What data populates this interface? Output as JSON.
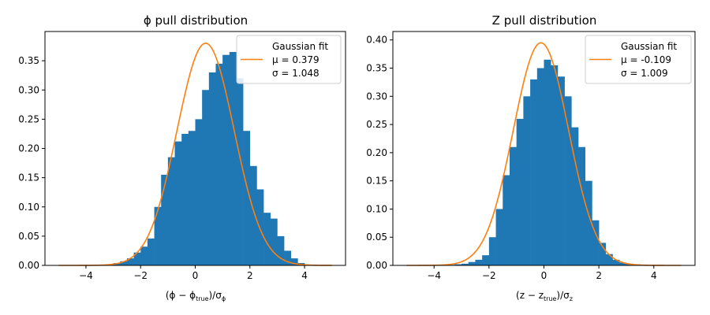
{
  "colors": {
    "bar": "#1f77b4",
    "fit": "#ff7f0e",
    "axis": "#000000"
  },
  "chart_data": [
    {
      "type": "bar",
      "title": "ϕ pull distribution",
      "xlabel_main": "(ϕ − ϕ",
      "xlabel_sub1": "true",
      "xlabel_mid": ")/σ",
      "xlabel_sub2": "ϕ",
      "xlim": [
        -5.5,
        5.5
      ],
      "ylim": [
        0,
        0.4
      ],
      "xticks": [
        -4,
        -2,
        0,
        2,
        4
      ],
      "xtick_labels": [
        "−4",
        "−2",
        "0",
        "2",
        "4"
      ],
      "yticks": [
        0,
        0.05,
        0.1,
        0.15,
        0.2,
        0.25,
        0.3,
        0.35
      ],
      "ytick_labels": [
        "0.00",
        "0.05",
        "0.10",
        "0.15",
        "0.20",
        "0.25",
        "0.30",
        "0.35"
      ],
      "bin_width": 0.25,
      "bins_start": [
        -4.0,
        -3.75,
        -3.5,
        -3.25,
        -3.0,
        -2.75,
        -2.5,
        -2.25,
        -2.0,
        -1.75,
        -1.5,
        -1.25,
        -1.0,
        -0.75,
        -0.5,
        -0.25,
        0.0,
        0.25,
        0.5,
        0.75,
        1.0,
        1.25,
        1.5,
        1.75,
        2.0,
        2.25,
        2.5,
        2.75,
        3.0,
        3.25,
        3.5,
        3.75
      ],
      "values": [
        0.0002,
        0.0004,
        0.001,
        0.002,
        0.004,
        0.007,
        0.012,
        0.022,
        0.032,
        0.046,
        0.1,
        0.155,
        0.185,
        0.212,
        0.225,
        0.23,
        0.25,
        0.3,
        0.33,
        0.345,
        0.36,
        0.365,
        0.32,
        0.23,
        0.17,
        0.13,
        0.09,
        0.08,
        0.05,
        0.025,
        0.012,
        0.004
      ],
      "fit": {
        "mu": 0.379,
        "sigma": 1.048,
        "amplitude": 0.38,
        "x_range": [
          -5,
          5
        ]
      },
      "legend": {
        "title": "Gaussian fit",
        "mu_label": "μ = 0.379",
        "sigma_label": "σ = 1.048",
        "placement": "top-right"
      }
    },
    {
      "type": "bar",
      "title": "Z pull distribution",
      "xlabel_main": "(z − z",
      "xlabel_sub1": "true",
      "xlabel_mid": ")/σ",
      "xlabel_sub2": "z",
      "xlim": [
        -5.5,
        5.5
      ],
      "ylim": [
        0,
        0.415
      ],
      "xticks": [
        -4,
        -2,
        0,
        2,
        4
      ],
      "xtick_labels": [
        "−4",
        "−2",
        "0",
        "2",
        "4"
      ],
      "yticks": [
        0,
        0.05,
        0.1,
        0.15,
        0.2,
        0.25,
        0.3,
        0.35,
        0.4
      ],
      "ytick_labels": [
        "0.00",
        "0.05",
        "0.10",
        "0.15",
        "0.20",
        "0.25",
        "0.30",
        "0.35",
        "0.40"
      ],
      "bin_width": 0.25,
      "bins_start": [
        -4.0,
        -3.75,
        -3.5,
        -3.25,
        -3.0,
        -2.75,
        -2.5,
        -2.25,
        -2.0,
        -1.75,
        -1.5,
        -1.25,
        -1.0,
        -0.75,
        -0.5,
        -0.25,
        0.0,
        0.25,
        0.5,
        0.75,
        1.0,
        1.25,
        1.5,
        1.75,
        2.0,
        2.25,
        2.5,
        2.75,
        3.0,
        3.25,
        3.5,
        3.75
      ],
      "values": [
        0.0002,
        0.0005,
        0.001,
        0.002,
        0.003,
        0.006,
        0.01,
        0.018,
        0.05,
        0.1,
        0.16,
        0.21,
        0.26,
        0.3,
        0.33,
        0.35,
        0.365,
        0.355,
        0.335,
        0.3,
        0.245,
        0.21,
        0.15,
        0.08,
        0.04,
        0.02,
        0.01,
        0.005,
        0.003,
        0.002,
        0.001,
        0.0005
      ],
      "fit": {
        "mu": -0.109,
        "sigma": 1.009,
        "amplitude": 0.395,
        "x_range": [
          -5,
          5
        ]
      },
      "legend": {
        "title": "Gaussian fit",
        "mu_label": "μ = -0.109",
        "sigma_label": "σ = 1.009",
        "placement": "top-right"
      }
    }
  ]
}
